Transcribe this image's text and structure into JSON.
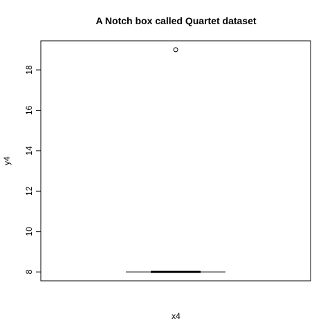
{
  "chart_data": {
    "type": "boxplot",
    "title": "A Notch box called Quartet dataset",
    "xlabel": "x4",
    "ylabel": "y4",
    "ylim": [
      7.56,
      19.44
    ],
    "yticks": [
      8,
      10,
      12,
      14,
      16,
      18
    ],
    "notch": true,
    "box": {
      "whisker_low": 8.0,
      "q1": 8.0,
      "median": 8.0,
      "q3": 8.0,
      "whisker_high": 8.0,
      "outliers": [
        19.0
      ]
    }
  }
}
